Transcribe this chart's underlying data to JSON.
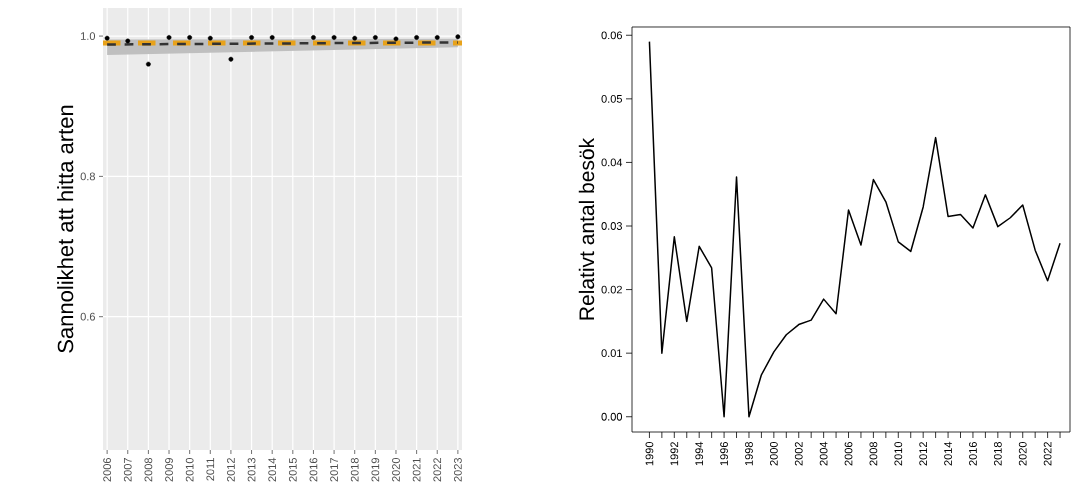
{
  "chart_data": [
    {
      "type": "scatter",
      "ylabel": "Sannolikhet att hitta arten",
      "xlim": [
        2005.8,
        2023.2
      ],
      "ylim": [
        0.41,
        1.04
      ],
      "xticks": [
        2006,
        2007,
        2008,
        2009,
        2010,
        2011,
        2012,
        2013,
        2014,
        2015,
        2016,
        2017,
        2018,
        2019,
        2020,
        2021,
        2022,
        2023
      ],
      "yticks": [
        0.6,
        0.8,
        {
          "value": 1,
          "label": "1.0"
        }
      ],
      "grid": true,
      "series": [
        {
          "type": "scatter",
          "color": "#000000",
          "x": [
            2006,
            2007,
            2008,
            2009,
            2010,
            2011,
            2012,
            2013,
            2014,
            2016,
            2017,
            2018,
            2019,
            2020,
            2021,
            2022,
            2023
          ],
          "values": [
            0.997,
            0.993,
            0.96,
            0.998,
            0.998,
            0.997,
            0.967,
            0.998,
            0.998,
            0.998,
            0.998,
            0.997,
            0.998,
            0.996,
            0.998,
            0.998,
            0.999
          ]
        },
        {
          "type": "line",
          "color": "#333333",
          "line_style": "dashed",
          "x": [
            2006,
            2023
          ],
          "values": [
            0.988,
            0.991
          ],
          "lower": [
            0.973,
            0.984
          ],
          "upper": [
            0.995,
            0.996
          ]
        }
      ],
      "ref_lines": [
        {
          "axis": "y",
          "value": 0.99,
          "color": "#e8a21a",
          "line_style": "dashed"
        }
      ]
    },
    {
      "type": "line",
      "ylabel": "Relativt antal besök",
      "xlim": [
        1988.6,
        2023.8
      ],
      "ylim": [
        -0.0024,
        0.0613
      ],
      "xticks": [
        1990,
        {
          "value": 1991,
          "label": null
        },
        1992,
        {
          "value": 1993,
          "label": null
        },
        1994,
        {
          "value": 1995,
          "label": null
        },
        1996,
        {
          "value": 1997,
          "label": null
        },
        1998,
        {
          "value": 1999,
          "label": null
        },
        2000,
        {
          "value": 2001,
          "label": null
        },
        2002,
        {
          "value": 2003,
          "label": null
        },
        2004,
        {
          "value": 2005,
          "label": null
        },
        2006,
        {
          "value": 2007,
          "label": null
        },
        2008,
        {
          "value": 2009,
          "label": null
        },
        2010,
        {
          "value": 2011,
          "label": null
        },
        2012,
        {
          "value": 2013,
          "label": null
        },
        2014,
        {
          "value": 2015,
          "label": null
        },
        2016,
        {
          "value": 2017,
          "label": null
        },
        2018,
        {
          "value": 2019,
          "label": null
        },
        2020,
        {
          "value": 2021,
          "label": null
        },
        2022,
        {
          "value": 2023,
          "label": null
        }
      ],
      "yticks": [
        {
          "value": 0,
          "label": "0.00"
        },
        {
          "value": 0.01,
          "label": "0.01"
        },
        {
          "value": 0.02,
          "label": "0.02"
        },
        {
          "value": 0.03,
          "label": "0.03"
        },
        {
          "value": 0.04,
          "label": "0.04"
        },
        {
          "value": 0.05,
          "label": "0.05"
        },
        {
          "value": 0.06,
          "label": "0.06"
        }
      ],
      "series": [
        {
          "color": "#000000",
          "x": [
            1990,
            1991,
            1992,
            1993,
            1994,
            1995,
            1996,
            1997,
            1998,
            1999,
            2000,
            2001,
            2002,
            2003,
            2004,
            2005,
            2006,
            2007,
            2008,
            2009,
            2010,
            2011,
            2012,
            2013,
            2014,
            2015,
            2016,
            2017,
            2018,
            2019,
            2020,
            2021,
            2022,
            2023
          ],
          "values": [
            0.059,
            0.01,
            0.0283,
            0.015,
            0.0268,
            0.0234,
            0.0,
            0.0377,
            0.0,
            0.0066,
            0.0102,
            0.0129,
            0.0145,
            0.0152,
            0.0185,
            0.0162,
            0.0325,
            0.027,
            0.0373,
            0.0338,
            0.0275,
            0.026,
            0.033,
            0.0439,
            0.0315,
            0.0318,
            0.0297,
            0.0349,
            0.0299,
            0.0313,
            0.0333,
            0.0262,
            0.0214,
            0.0273
          ]
        }
      ]
    }
  ]
}
